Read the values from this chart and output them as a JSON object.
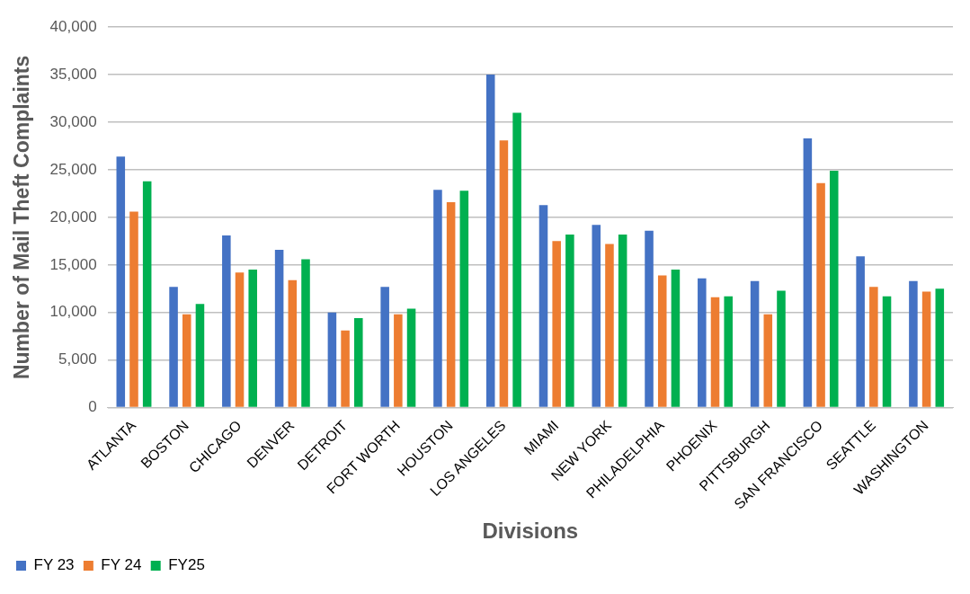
{
  "chart_data": {
    "type": "bar",
    "xlabel": "Divisions",
    "ylabel": "Number of Mail Theft Complaints",
    "categories": [
      "ATLANTA",
      "BOSTON",
      "CHICAGO",
      "DENVER",
      "DETROIT",
      "FORT WORTH",
      "HOUSTON",
      "LOS ANGELES",
      "MIAMI",
      "NEW YORK",
      "PHILADELPHIA",
      "PHOENIX",
      "PITTSBURGH",
      "SAN FRANCISCO",
      "SEATTLE",
      "WASHINGTON"
    ],
    "series": [
      {
        "name": "FY 23",
        "color": "#4472c4",
        "values": [
          26400,
          12700,
          18100,
          16600,
          10000,
          12700,
          22900,
          35000,
          21300,
          19200,
          18600,
          13600,
          13300,
          28300,
          15900,
          13300
        ]
      },
      {
        "name": "FY 24",
        "color": "#ed7d31",
        "values": [
          20600,
          9800,
          14200,
          13400,
          8100,
          9800,
          21600,
          28100,
          17500,
          17200,
          13900,
          11600,
          9800,
          23600,
          12700,
          12200
        ]
      },
      {
        "name": "FY25",
        "color": "#00b050",
        "values": [
          23800,
          10900,
          14500,
          15600,
          9400,
          10400,
          22800,
          31000,
          18200,
          18200,
          14500,
          11700,
          12300,
          24900,
          11700,
          12500
        ]
      }
    ],
    "ylim": [
      0,
      40000
    ],
    "yticks": [
      0,
      {
        "value": 5000,
        "label": "5,000"
      },
      {
        "value": 10000,
        "label": "10,000"
      },
      {
        "value": 15000,
        "label": "15,000"
      },
      {
        "value": 20000,
        "label": "20,000"
      },
      {
        "value": 25000,
        "label": "25,000"
      },
      {
        "value": 30000,
        "label": "30,000"
      },
      {
        "value": 35000,
        "label": "35,000"
      },
      {
        "value": 40000,
        "label": "40,000"
      }
    ],
    "grid": "y",
    "legend": "bottom left"
  }
}
